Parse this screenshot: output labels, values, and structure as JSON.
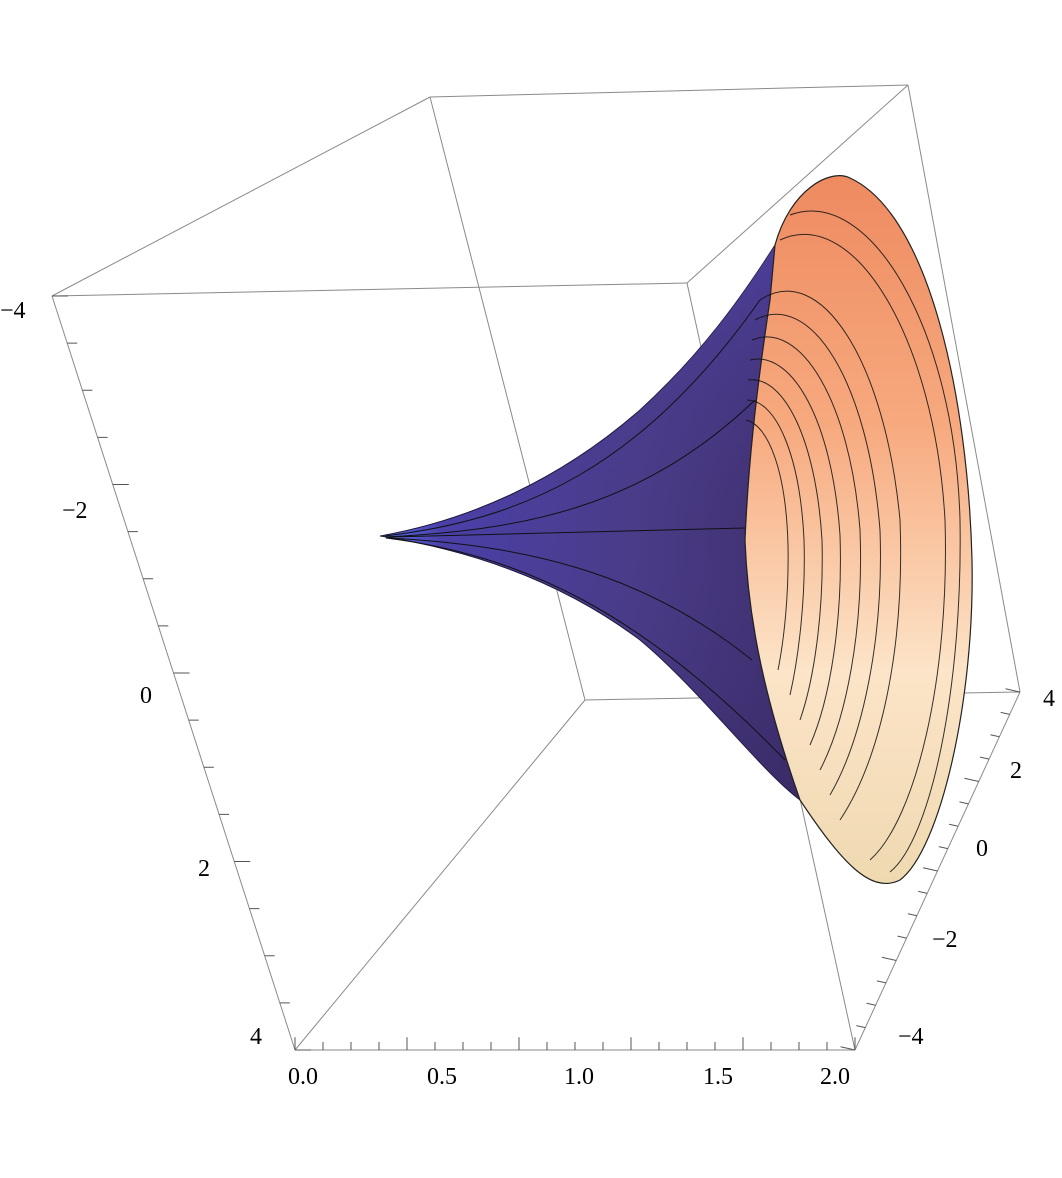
{
  "chart_data": {
    "type": "surface3d",
    "title": "",
    "surface": "surface of revolution about the x-axis (horn), radius = r(x)",
    "radius_samples": {
      "x": [
        0.3,
        0.6,
        0.9,
        1.2,
        1.4,
        1.6,
        1.8,
        2.0
      ],
      "r": [
        0.0,
        0.1,
        0.4,
        0.9,
        1.5,
        2.2,
        3.2,
        4.5
      ]
    },
    "axes": {
      "x": {
        "range": [
          0,
          2
        ],
        "ticks": [
          "0.0",
          "0.5",
          "1.0",
          "1.5",
          "2.0"
        ]
      },
      "y": {
        "range": [
          -4,
          4
        ],
        "ticks": [
          "4",
          "2",
          "0",
          "−2",
          "−4"
        ]
      },
      "z": {
        "range": [
          -4,
          4
        ],
        "ticks": [
          "−4",
          "−2",
          "0",
          "2",
          "4"
        ]
      }
    },
    "colors": {
      "outer_surface": "#4b3f8c",
      "outer_highlight": "#6a5ce0",
      "inner_top": "#f3946a",
      "inner_bottom": "#fbe3c4",
      "box": "#8a8a8a"
    }
  }
}
